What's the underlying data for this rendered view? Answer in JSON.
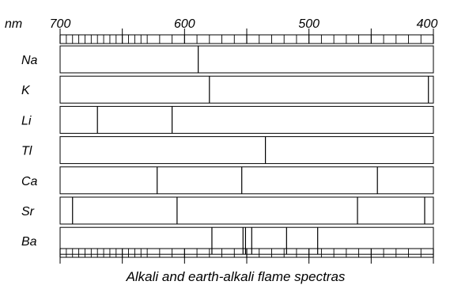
{
  "axis": {
    "unit": "nm",
    "wavelength_max": 700,
    "wavelength_min": 400,
    "tick_labels": [
      {
        "value": 700,
        "text": "700"
      },
      {
        "value": 600,
        "text": "600"
      },
      {
        "value": 500,
        "text": "500"
      },
      {
        "value": 400,
        "text": "400"
      }
    ]
  },
  "caption": "Alkali and earth-alkali flame spectras",
  "elements": [
    {
      "symbol": "Na",
      "lines_nm": [
        589
      ]
    },
    {
      "symbol": "K",
      "lines_nm": [
        580,
        404
      ]
    },
    {
      "symbol": "Li",
      "lines_nm": [
        670,
        610
      ]
    },
    {
      "symbol": "Tl",
      "lines_nm": [
        535
      ]
    },
    {
      "symbol": "Ca",
      "lines_nm": [
        622,
        554,
        445
      ]
    },
    {
      "symbol": "Sr",
      "lines_nm": [
        690,
        606,
        461,
        407
      ]
    },
    {
      "symbol": "Ba",
      "lines_nm": [
        578,
        553,
        551,
        546,
        518,
        493
      ]
    }
  ]
}
